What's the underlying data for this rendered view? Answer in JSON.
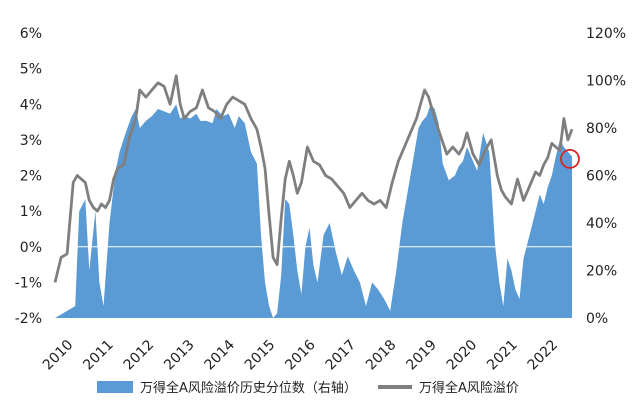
{
  "chart_data": {
    "type": "area",
    "x_ticks": [
      "2010",
      "2011",
      "2012",
      "2013",
      "2014",
      "2015",
      "2016",
      "2017",
      "2018",
      "2019",
      "2020",
      "2021",
      "2022"
    ],
    "left_axis": {
      "ticks": [
        "6%",
        "5%",
        "4%",
        "3%",
        "2%",
        "1%",
        "0%",
        "-1%",
        "-2%"
      ],
      "ylim": [
        -2,
        6
      ]
    },
    "right_axis": {
      "ticks": [
        "120%",
        "100%",
        "80%",
        "60%",
        "40%",
        "20%",
        "0%"
      ],
      "ylim": [
        0,
        120
      ]
    },
    "series": [
      {
        "name": "万得全A风险溢价历史分位数（右轴）",
        "axis": "right",
        "type": "area",
        "color": "#5b9bd5",
        "x": [
          2010.0,
          2010.3,
          2010.5,
          2010.6,
          2010.75,
          2010.85,
          2011.0,
          2011.1,
          2011.2,
          2011.35,
          2011.5,
          2011.6,
          2011.75,
          2011.9,
          2012.0,
          2012.1,
          2012.25,
          2012.4,
          2012.55,
          2012.7,
          2012.85,
          2013.0,
          2013.1,
          2013.2,
          2013.35,
          2013.5,
          2013.6,
          2013.75,
          2013.9,
          2014.0,
          2014.15,
          2014.3,
          2014.45,
          2014.55,
          2014.7,
          2014.85,
          2015.0,
          2015.1,
          2015.2,
          2015.3,
          2015.4,
          2015.5,
          2015.6,
          2015.7,
          2015.8,
          2015.9,
          2016.0,
          2016.1,
          2016.2,
          2016.3,
          2016.4,
          2016.5,
          2016.65,
          2016.8,
          2016.95,
          2017.1,
          2017.25,
          2017.4,
          2017.55,
          2017.7,
          2017.85,
          2018.0,
          2018.15,
          2018.3,
          2018.45,
          2018.6,
          2018.75,
          2018.9,
          2019.0,
          2019.1,
          2019.2,
          2019.3,
          2019.4,
          2019.5,
          2019.6,
          2019.75,
          2019.9,
          2020.0,
          2020.1,
          2020.2,
          2020.3,
          2020.45,
          2020.6,
          2020.75,
          2020.9,
          2021.0,
          2021.1,
          2021.2,
          2021.3,
          2021.4,
          2021.5,
          2021.6,
          2021.75,
          2021.9,
          2022.0,
          2022.1,
          2022.2,
          2022.3,
          2022.4,
          2022.5,
          2022.6,
          2022.7,
          2022.8
        ],
        "values": [
          0,
          3,
          5,
          45,
          50,
          20,
          45,
          15,
          5,
          40,
          62,
          70,
          78,
          85,
          88,
          80,
          83,
          85,
          88,
          87,
          86,
          90,
          84,
          85,
          84,
          86,
          83,
          83,
          82,
          88,
          85,
          86,
          80,
          85,
          82,
          70,
          65,
          35,
          15,
          5,
          0,
          2,
          18,
          50,
          48,
          35,
          20,
          10,
          30,
          38,
          22,
          15,
          35,
          40,
          28,
          18,
          26,
          20,
          15,
          5,
          15,
          12,
          8,
          3,
          20,
          40,
          55,
          70,
          80,
          83,
          85,
          90,
          88,
          82,
          65,
          58,
          60,
          64,
          66,
          72,
          68,
          62,
          78,
          70,
          30,
          15,
          5,
          25,
          20,
          12,
          8,
          25,
          35,
          45,
          52,
          48,
          55,
          60,
          68,
          75,
          72,
          70,
          68
        ]
      },
      {
        "name": "万得全A风险溢价",
        "axis": "left",
        "type": "line",
        "color": "#7f7f7f",
        "x": [
          2010.0,
          2010.15,
          2010.3,
          2010.45,
          2010.55,
          2010.65,
          2010.75,
          2010.85,
          2010.95,
          2011.05,
          2011.15,
          2011.25,
          2011.35,
          2011.45,
          2011.55,
          2011.7,
          2011.85,
          2012.0,
          2012.1,
          2012.25,
          2012.4,
          2012.55,
          2012.7,
          2012.85,
          2013.0,
          2013.1,
          2013.2,
          2013.35,
          2013.5,
          2013.65,
          2013.8,
          2013.95,
          2014.1,
          2014.25,
          2014.4,
          2014.55,
          2014.7,
          2014.85,
          2015.0,
          2015.1,
          2015.2,
          2015.3,
          2015.4,
          2015.5,
          2015.6,
          2015.7,
          2015.8,
          2015.9,
          2016.0,
          2016.1,
          2016.25,
          2016.4,
          2016.55,
          2016.7,
          2016.85,
          2017.0,
          2017.15,
          2017.3,
          2017.45,
          2017.6,
          2017.75,
          2017.9,
          2018.05,
          2018.2,
          2018.35,
          2018.5,
          2018.65,
          2018.8,
          2018.95,
          2019.05,
          2019.15,
          2019.25,
          2019.4,
          2019.55,
          2019.7,
          2019.85,
          2020.0,
          2020.1,
          2020.2,
          2020.35,
          2020.5,
          2020.65,
          2020.8,
          2020.95,
          2021.05,
          2021.15,
          2021.3,
          2021.45,
          2021.6,
          2021.75,
          2021.9,
          2022.0,
          2022.1,
          2022.2,
          2022.3,
          2022.4,
          2022.5,
          2022.6,
          2022.7,
          2022.8
        ],
        "values": [
          -1.0,
          -0.3,
          -0.2,
          1.8,
          2.0,
          1.9,
          1.8,
          1.3,
          1.1,
          1.0,
          1.2,
          1.1,
          1.3,
          1.9,
          2.2,
          2.3,
          3.1,
          3.6,
          4.4,
          4.2,
          4.4,
          4.6,
          4.5,
          4.0,
          4.8,
          4.0,
          3.6,
          3.8,
          3.9,
          4.4,
          3.9,
          3.8,
          3.6,
          4.0,
          4.2,
          4.1,
          4.0,
          3.6,
          3.3,
          2.8,
          2.2,
          0.9,
          -0.3,
          -0.5,
          0.8,
          1.9,
          2.4,
          2.0,
          1.5,
          1.8,
          2.8,
          2.4,
          2.3,
          2.0,
          1.9,
          1.7,
          1.5,
          1.1,
          1.3,
          1.5,
          1.3,
          1.2,
          1.3,
          1.1,
          1.8,
          2.4,
          2.8,
          3.2,
          3.6,
          4.0,
          4.4,
          4.2,
          3.6,
          3.1,
          2.6,
          2.8,
          2.6,
          2.8,
          3.2,
          2.6,
          2.3,
          2.7,
          3.0,
          2.0,
          1.6,
          1.4,
          1.2,
          1.9,
          1.3,
          1.7,
          2.1,
          2.0,
          2.3,
          2.5,
          2.9,
          2.8,
          2.7,
          3.6,
          3.0,
          3.3
        ]
      }
    ],
    "annotation": {
      "type": "circle",
      "x": 2022.75,
      "y_right": 67,
      "color": "#d62728"
    },
    "grid": "none",
    "legend_position": "bottom"
  }
}
